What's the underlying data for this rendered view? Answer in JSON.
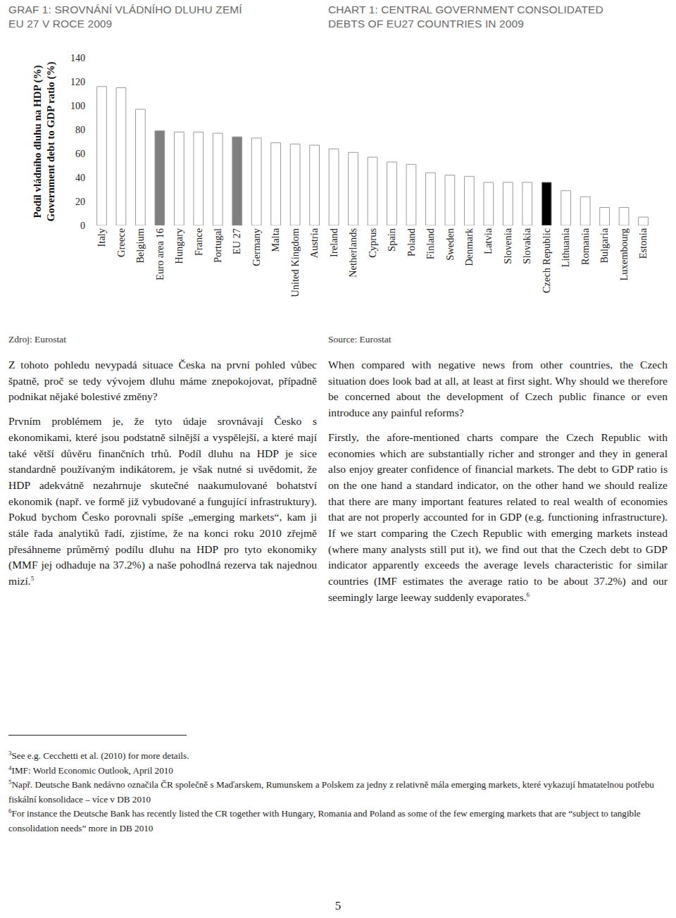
{
  "header": {
    "cs": [
      "GRAF 1: SROVNÁNÍ VLÁDNÍHO DLUHU ZEMÍ",
      "EU 27 V ROCE 2009"
    ],
    "en": [
      "CHART 1: CENTRAL GOVERNMENT CONSOLIDATED",
      "DEBTS OF EU27 COUNTRIES IN 2009"
    ]
  },
  "chart_data": {
    "type": "bar",
    "y_label": [
      "Podíl vládního dluhu na HDP (%)",
      "Government debt to GDP ratio (%)"
    ],
    "categories": [
      "Italy",
      "Greece",
      "Belgium",
      "Euro area 16",
      "Hungary",
      "France",
      "Portugal",
      "EU 27",
      "Germany",
      "Malta",
      "United Kingdom",
      "Austria",
      "Ireland",
      "Netherlands",
      "Cyprus",
      "Spain",
      "Poland",
      "Finland",
      "Sweden",
      "Denmark",
      "Latvia",
      "Slovenia",
      "Slovakia",
      "Czech Republic",
      "Lithuania",
      "Romania",
      "Bulgaria",
      "Luxembourg",
      "Estonia"
    ],
    "values": [
      116,
      115,
      97,
      79,
      78,
      78,
      77,
      74,
      73,
      69,
      68,
      67,
      64,
      61,
      57,
      53,
      51,
      44,
      42,
      41,
      36,
      36,
      36,
      36,
      29,
      24,
      15,
      15,
      7
    ],
    "colors": [
      "#ffffff",
      "#ffffff",
      "#ffffff",
      "#7f7f7f",
      "#ffffff",
      "#ffffff",
      "#ffffff",
      "#7f7f7f",
      "#ffffff",
      "#ffffff",
      "#ffffff",
      "#ffffff",
      "#ffffff",
      "#ffffff",
      "#ffffff",
      "#ffffff",
      "#ffffff",
      "#ffffff",
      "#ffffff",
      "#ffffff",
      "#ffffff",
      "#ffffff",
      "#ffffff",
      "#000000",
      "#ffffff",
      "#ffffff",
      "#ffffff",
      "#ffffff",
      "#ffffff"
    ],
    "ylim": [
      0,
      140
    ],
    "yticks": [
      0,
      20,
      40,
      60,
      80,
      100,
      120,
      140
    ],
    "grid": false
  },
  "sources": {
    "cs": "Zdroj: Eurostat",
    "en": "Source: Eurostat"
  },
  "columns": {
    "cs": {
      "paragraphs": [
        "Z tohoto pohledu nevypadá situace Česka na první pohled vůbec špatně, proč se tedy vývojem dluhu máme znepokojovat, případně podnikat nějaké bolestivé změny?",
        "Prvním problémem je, že tyto údaje srovnávají Česko s ekonomikami, které jsou podstatně silnější a vyspělejší, a které mají také větší důvěru finančních trhů. Podíl dluhu na HDP je sice standardně používaným indikátorem, je však nutné si uvědomit, že HDP adekvátně nezahrnuje skutečné naakumulované bohatství ekonomik (např. ve formě již vybudované a fungující infrastruktury). Pokud bychom Česko porovnali spíše „emerging markets“, kam ji stále řada analytiků řadí, zjistíme, že na konci roku 2010 zřejmě přesáhneme průměrný podílu dluhu na HDP pro tyto ekonomiky (MMF jej odhaduje na 37.2%) a naše pohodlná rezerva tak najednou mizí."
      ],
      "footnote_ref": "5"
    },
    "en": {
      "paragraphs": [
        "When compared with negative news from other countries, the Czech situation does look bad at all, at least at first sight. Why should we therefore be concerned about the development of Czech public finance or even introduce any painful reforms?",
        "Firstly, the afore-mentioned charts compare the Czech Republic with economies which are substantially richer and stronger and they in general also enjoy greater confidence of financial markets. The debt to GDP ratio is on the one hand a standard indicator, on the other hand we should realize that there are many important features related to real wealth of economies that are not properly accounted for in GDP (e.g. functioning infrastructure). If we start comparing the Czech Republic with emerging markets instead (where many analysts still put it), we find out that the Czech debt to GDP indicator apparently exceeds the average levels characteristic for similar countries (IMF estimates the average ratio to be about 37.2%) and our seemingly large leeway suddenly evaporates."
      ],
      "footnote_ref": "6"
    }
  },
  "footnotes": [
    {
      "number": "3",
      "text": "See e.g. Cecchetti et al. (2010) for more details."
    },
    {
      "number": "4",
      "text": "IMF: World Economic Outlook, April 2010"
    },
    {
      "number": "5",
      "text": "Např. Deutsche Bank nedávno označila ČR společně s Maďarskem, Rumunskem a Polskem za jedny z relativně mála emerging markets, které vykazují hmatatelnou potřebu fiskální konsolidace – více v DB 2010"
    },
    {
      "number": "6",
      "text": "For instance the Deutsche Bank has recently listed the CR together with Hungary, Romania and Poland as some of the few emerging markets that are “subject to tangible consolidation needs” more in DB 2010"
    }
  ],
  "page_number": "5"
}
